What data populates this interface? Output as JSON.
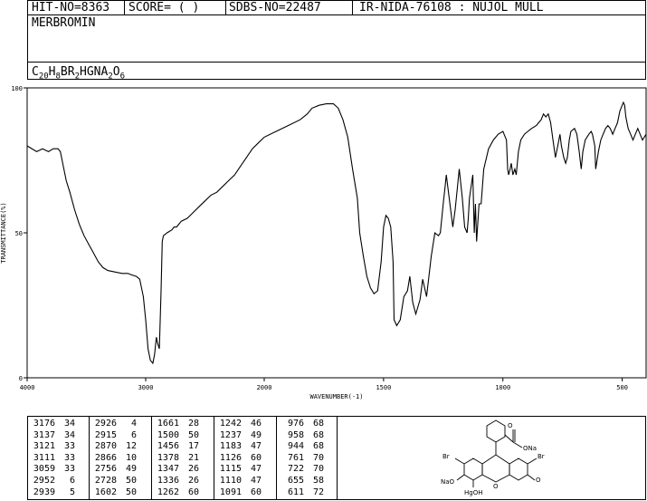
{
  "header": {
    "hit_no": "HIT-NO=8363",
    "score": "SCORE=  (   )",
    "sdbs_no": "SDBS-NO=22487",
    "ir_nida": "IR-NIDA-76108 : NUJOL MULL",
    "compound_name": "MERBROMIN",
    "formula_parts": [
      {
        "t": "C",
        "sub": false
      },
      {
        "t": "20",
        "sub": true
      },
      {
        "t": "H",
        "sub": false
      },
      {
        "t": "8",
        "sub": true
      },
      {
        "t": "BR",
        "sub": false
      },
      {
        "t": "2",
        "sub": true
      },
      {
        "t": "HGNA",
        "sub": false
      },
      {
        "t": "2",
        "sub": true
      },
      {
        "t": "O",
        "sub": false
      },
      {
        "t": "6",
        "sub": true
      }
    ]
  },
  "chart_data": {
    "type": "line",
    "title": "",
    "xlabel": "WAVENUMBER(-1)",
    "ylabel": "TRANSMITTANCE(%)",
    "xlim": [
      4000,
      400
    ],
    "ylim": [
      0,
      100
    ],
    "x_ticks": [
      4000,
      3000,
      2000,
      1500,
      1000,
      500
    ],
    "y_ticks": [
      0,
      50,
      100
    ],
    "grid": false,
    "series": [
      {
        "name": "",
        "points": [
          [
            4000,
            80
          ],
          [
            3920,
            78
          ],
          [
            3870,
            79
          ],
          [
            3820,
            78
          ],
          [
            3780,
            79
          ],
          [
            3740,
            79
          ],
          [
            3720,
            78
          ],
          [
            3700,
            74
          ],
          [
            3670,
            68
          ],
          [
            3640,
            64
          ],
          [
            3600,
            58
          ],
          [
            3560,
            53
          ],
          [
            3520,
            49
          ],
          [
            3480,
            46
          ],
          [
            3440,
            43
          ],
          [
            3400,
            40
          ],
          [
            3360,
            38
          ],
          [
            3320,
            37
          ],
          [
            3260,
            36.5
          ],
          [
            3200,
            36
          ],
          [
            3150,
            36
          ],
          [
            3120,
            35.5
          ],
          [
            3080,
            35
          ],
          [
            3050,
            34
          ],
          [
            3020,
            28
          ],
          [
            3000,
            20
          ],
          [
            2980,
            10
          ],
          [
            2960,
            6
          ],
          [
            2940,
            5
          ],
          [
            2925,
            8
          ],
          [
            2910,
            14
          ],
          [
            2900,
            12
          ],
          [
            2885,
            10
          ],
          [
            2870,
            30
          ],
          [
            2860,
            47
          ],
          [
            2850,
            49
          ],
          [
            2820,
            50
          ],
          [
            2780,
            51
          ],
          [
            2760,
            52
          ],
          [
            2740,
            52
          ],
          [
            2720,
            53
          ],
          [
            2700,
            54
          ],
          [
            2650,
            55
          ],
          [
            2600,
            57
          ],
          [
            2550,
            59
          ],
          [
            2500,
            61
          ],
          [
            2450,
            63
          ],
          [
            2400,
            64
          ],
          [
            2350,
            66
          ],
          [
            2300,
            68
          ],
          [
            2250,
            70
          ],
          [
            2200,
            73
          ],
          [
            2150,
            76
          ],
          [
            2100,
            79
          ],
          [
            2050,
            81
          ],
          [
            2000,
            83
          ],
          [
            1950,
            85
          ],
          [
            1900,
            87
          ],
          [
            1850,
            89
          ],
          [
            1820,
            91
          ],
          [
            1800,
            93
          ],
          [
            1770,
            94
          ],
          [
            1740,
            94.5
          ],
          [
            1710,
            94.5
          ],
          [
            1690,
            93
          ],
          [
            1670,
            89
          ],
          [
            1650,
            83
          ],
          [
            1630,
            72
          ],
          [
            1610,
            62
          ],
          [
            1600,
            50
          ],
          [
            1585,
            42
          ],
          [
            1570,
            35
          ],
          [
            1555,
            31
          ],
          [
            1540,
            29
          ],
          [
            1525,
            30
          ],
          [
            1510,
            40
          ],
          [
            1500,
            52
          ],
          [
            1490,
            56
          ],
          [
            1480,
            55
          ],
          [
            1470,
            52
          ],
          [
            1460,
            40
          ],
          [
            1456,
            20
          ],
          [
            1445,
            18
          ],
          [
            1430,
            20
          ],
          [
            1415,
            28
          ],
          [
            1400,
            30
          ],
          [
            1390,
            35
          ],
          [
            1378,
            26
          ],
          [
            1365,
            22
          ],
          [
            1347,
            27
          ],
          [
            1336,
            34
          ],
          [
            1320,
            28
          ],
          [
            1300,
            42
          ],
          [
            1285,
            50
          ],
          [
            1270,
            49
          ],
          [
            1262,
            50
          ],
          [
            1250,
            60
          ],
          [
            1242,
            66
          ],
          [
            1237,
            70
          ],
          [
            1225,
            62
          ],
          [
            1210,
            52
          ],
          [
            1200,
            58
          ],
          [
            1190,
            66
          ],
          [
            1183,
            72
          ],
          [
            1170,
            62
          ],
          [
            1160,
            52
          ],
          [
            1150,
            50
          ],
          [
            1145,
            55
          ],
          [
            1140,
            62
          ],
          [
            1126,
            70
          ],
          [
            1120,
            50
          ],
          [
            1115,
            60
          ],
          [
            1110,
            47
          ],
          [
            1100,
            60
          ],
          [
            1091,
            60
          ],
          [
            1080,
            72
          ],
          [
            1060,
            79
          ],
          [
            1040,
            82
          ],
          [
            1020,
            84
          ],
          [
            1000,
            85
          ],
          [
            985,
            82
          ],
          [
            980,
            72
          ],
          [
            976,
            70
          ],
          [
            970,
            72
          ],
          [
            965,
            74
          ],
          [
            958,
            70
          ],
          [
            950,
            72
          ],
          [
            944,
            70
          ],
          [
            935,
            78
          ],
          [
            925,
            82
          ],
          [
            910,
            84
          ],
          [
            895,
            85
          ],
          [
            880,
            86
          ],
          [
            860,
            87
          ],
          [
            850,
            88
          ],
          [
            840,
            89
          ],
          [
            830,
            91
          ],
          [
            820,
            90
          ],
          [
            810,
            91
          ],
          [
            800,
            88
          ],
          [
            790,
            82
          ],
          [
            780,
            76
          ],
          [
            770,
            80
          ],
          [
            761,
            84
          ],
          [
            755,
            80
          ],
          [
            745,
            76
          ],
          [
            737,
            74
          ],
          [
            730,
            76
          ],
          [
            722,
            82
          ],
          [
            715,
            85
          ],
          [
            700,
            86
          ],
          [
            690,
            84
          ],
          [
            680,
            78
          ],
          [
            672,
            72
          ],
          [
            665,
            78
          ],
          [
            655,
            82
          ],
          [
            640,
            84
          ],
          [
            630,
            85
          ],
          [
            625,
            84
          ],
          [
            615,
            80
          ],
          [
            611,
            72
          ],
          [
            600,
            78
          ],
          [
            590,
            82
          ],
          [
            580,
            84
          ],
          [
            570,
            86
          ],
          [
            560,
            87
          ],
          [
            550,
            86
          ],
          [
            540,
            84
          ],
          [
            530,
            86
          ],
          [
            520,
            88
          ],
          [
            510,
            92
          ],
          [
            500,
            94
          ],
          [
            495,
            95
          ],
          [
            490,
            94
          ],
          [
            485,
            90
          ],
          [
            475,
            86
          ],
          [
            465,
            84
          ],
          [
            455,
            82
          ],
          [
            445,
            84
          ],
          [
            435,
            86
          ],
          [
            425,
            84
          ],
          [
            415,
            82
          ],
          [
            400,
            84
          ]
        ]
      }
    ]
  },
  "peak_table": {
    "columns": [
      [
        [
          "3176",
          "34"
        ],
        [
          "3137",
          "34"
        ],
        [
          "3121",
          "33"
        ],
        [
          "3111",
          "33"
        ],
        [
          "3059",
          "33"
        ],
        [
          "2952",
          "6"
        ],
        [
          "2939",
          "5"
        ]
      ],
      [
        [
          "2926",
          "4"
        ],
        [
          "2915",
          "6"
        ],
        [
          "2870",
          "12"
        ],
        [
          "2866",
          "10"
        ],
        [
          "2756",
          "49"
        ],
        [
          "2728",
          "50"
        ],
        [
          "1602",
          "50"
        ]
      ],
      [
        [
          "1661",
          "28"
        ],
        [
          "1500",
          "50"
        ],
        [
          "1456",
          "17"
        ],
        [
          "1378",
          "21"
        ],
        [
          "1347",
          "26"
        ],
        [
          "1336",
          "26"
        ],
        [
          "1262",
          "60"
        ]
      ],
      [
        [
          "1242",
          "46"
        ],
        [
          "1237",
          "49"
        ],
        [
          "1183",
          "47"
        ],
        [
          "1126",
          "60"
        ],
        [
          "1115",
          "47"
        ],
        [
          "1110",
          "47"
        ],
        [
          "1091",
          "60"
        ]
      ],
      [
        [
          "976",
          "68"
        ],
        [
          "958",
          "68"
        ],
        [
          "944",
          "68"
        ],
        [
          "761",
          "70"
        ],
        [
          "722",
          "70"
        ],
        [
          "655",
          "58"
        ],
        [
          "611",
          "72"
        ]
      ]
    ]
  },
  "structure": {
    "labels": {
      "br_left": "Br",
      "br_right": "Br",
      "nao": "NaO",
      "o_ring": "O",
      "o_right": "O",
      "ona": "ONa",
      "o_carbonyl": "O",
      "hgoh": "HgOH"
    }
  }
}
